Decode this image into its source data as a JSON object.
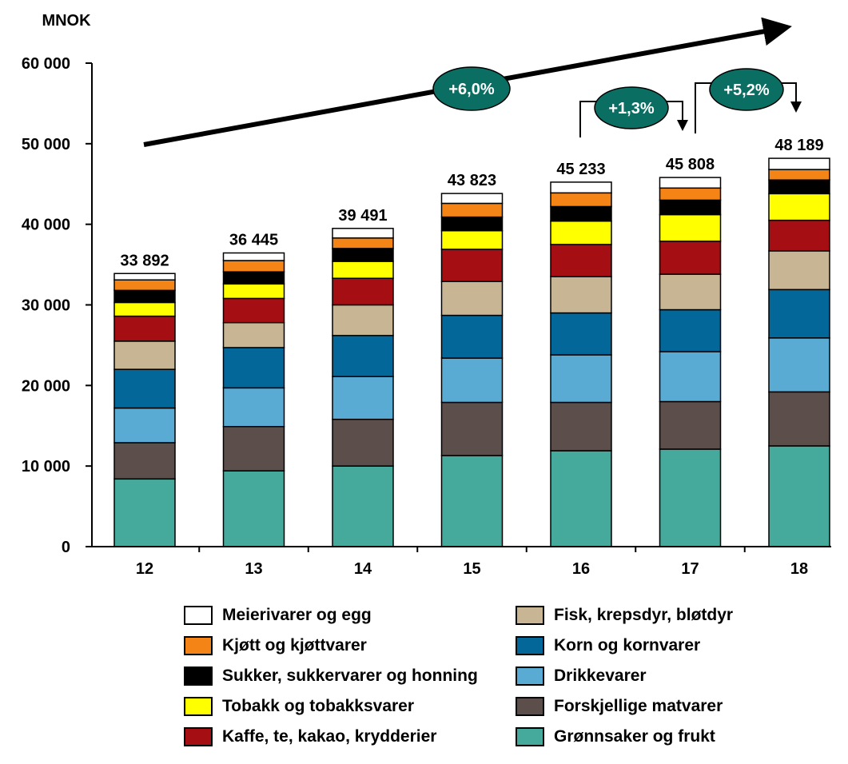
{
  "chart_data": {
    "type": "bar",
    "stacked": true,
    "unit_label": "MNOK",
    "categories": [
      "12",
      "13",
      "14",
      "15",
      "16",
      "17",
      "18"
    ],
    "ylim": [
      0,
      60000
    ],
    "yticks": [
      "0",
      "10 000",
      "20 000",
      "30 000",
      "40 000",
      "50 000",
      "60 000"
    ],
    "ytick_values": [
      0,
      10000,
      20000,
      30000,
      40000,
      50000,
      60000
    ],
    "totals": [
      "33 892",
      "36 445",
      "39 491",
      "43 823",
      "45 233",
      "45 808",
      "48 189"
    ],
    "total_values": [
      33892,
      36445,
      39491,
      43823,
      45233,
      45808,
      48189
    ],
    "series": [
      {
        "name": "Grønnsaker og frukt",
        "color": "#45a99c",
        "values": [
          8400,
          9400,
          10000,
          11300,
          11900,
          12100,
          12500
        ]
      },
      {
        "name": "Forskjellige matvarer",
        "color": "#5b4e4b",
        "values": [
          4500,
          5500,
          5800,
          6600,
          6000,
          5900,
          6700
        ]
      },
      {
        "name": "Drikkevarer",
        "color": "#5aabd4",
        "values": [
          4300,
          4800,
          5300,
          5500,
          5900,
          6200,
          6700
        ]
      },
      {
        "name": "Korn og kornvarer",
        "color": "#03679a",
        "values": [
          4800,
          5000,
          5100,
          5300,
          5200,
          5200,
          6000
        ]
      },
      {
        "name": "Fisk, krepsdyr, bløtdyr",
        "color": "#c7b593",
        "values": [
          3500,
          3100,
          3800,
          4200,
          4500,
          4400,
          4800
        ]
      },
      {
        "name": "Kaffe, te, kakao, krydderier",
        "color": "#a50f14",
        "values": [
          3100,
          3000,
          3300,
          4000,
          4000,
          4100,
          3800
        ]
      },
      {
        "name": "Tobakk og tobakksvarer",
        "color": "#ffff00",
        "values": [
          1700,
          1800,
          2100,
          2300,
          2900,
          3300,
          3300
        ]
      },
      {
        "name": "Sukker, sukkervarer og honning",
        "color": "#000000",
        "values": [
          1500,
          1500,
          1600,
          1700,
          1800,
          1800,
          1700
        ]
      },
      {
        "name": "Kjøtt og kjøttvarer",
        "color": "#f58417",
        "values": [
          1300,
          1400,
          1300,
          1700,
          1700,
          1500,
          1300
        ]
      },
      {
        "name": "Meierivarer og egg",
        "color": "#ffffff",
        "values": [
          792,
          945,
          1191,
          1223,
          1333,
          1308,
          1389
        ]
      }
    ],
    "legend_order": [
      "Meierivarer og egg",
      "Kjøtt og kjøttvarer",
      "Sukker, sukkervarer og honning",
      "Tobakk og tobakksvarer",
      "Kaffe, te, kakao, krydderier",
      "Fisk, krepsdyr, bløtdyr",
      "Korn og kornvarer",
      "Drikkevarer",
      "Forskjellige matvarer",
      "Grønnsaker og frukt"
    ],
    "legend_placement": "bottom",
    "grid": false,
    "annotations": {
      "overall_growth": "+6,0%",
      "growth_16_17": "+1,3%",
      "growth_17_18": "+5,2%",
      "badge_color": "#0b6e63"
    }
  }
}
